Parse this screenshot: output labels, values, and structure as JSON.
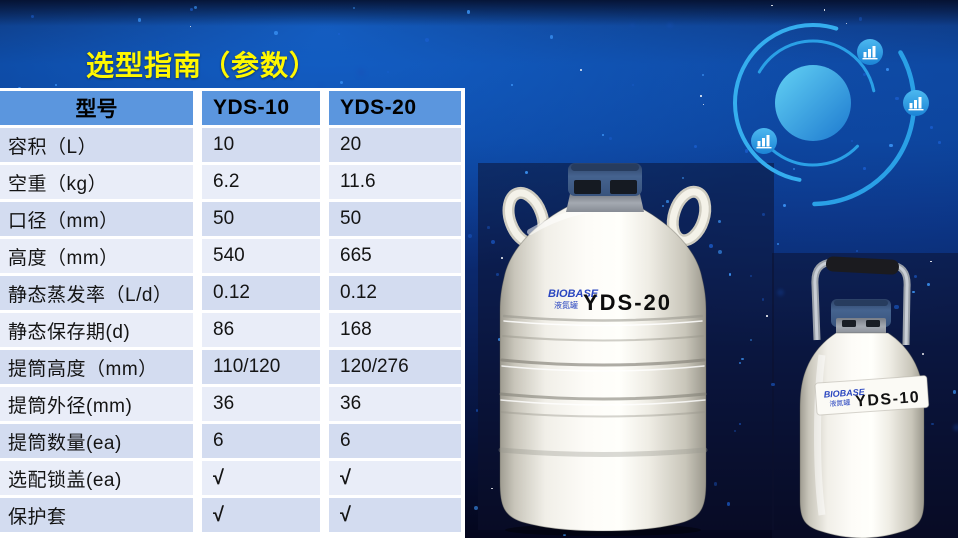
{
  "title": "选型指南（参数）",
  "colors": {
    "title_text": "#FFF800",
    "table_header_bg": "#5B96DE",
    "row_band_dark": "#D3DCF0",
    "row_band_light": "#E9EDF8",
    "orbit_blue": "#2AA0E6",
    "tank_cap_blue": "#3A5584",
    "brand_blue": "#2A46C0"
  },
  "table": {
    "header": {
      "col1": "型号",
      "col2": "YDS-10",
      "col3": "YDS-20"
    },
    "rows": [
      {
        "label": "容积（L）",
        "yds10": "10",
        "yds20": "20"
      },
      {
        "label": "空重（kg）",
        "yds10": "6.2",
        "yds20": "11.6"
      },
      {
        "label": "口径（mm）",
        "yds10": "50",
        "yds20": "50"
      },
      {
        "label": "高度（mm）",
        "yds10": "540",
        "yds20": "665"
      },
      {
        "label": "静态蒸发率（L/d）",
        "yds10": "0.12",
        "yds20": "0.12"
      },
      {
        "label": "静态保存期(d)",
        "yds10": "86",
        "yds20": "168"
      },
      {
        "label": "提筒高度（mm）",
        "yds10": "110/120",
        "yds20": "120/276"
      },
      {
        "label": "提筒外径(mm)",
        "yds10": "36",
        "yds20": "36"
      },
      {
        "label": "提筒数量(ea)",
        "yds10": "6",
        "yds20": "6"
      },
      {
        "label": "选配锁盖(ea)",
        "yds10": "√",
        "yds20": "√"
      },
      {
        "label": "保护套",
        "yds10": "√",
        "yds20": "√"
      }
    ]
  },
  "products": {
    "yds20": {
      "brand": "BIOBASE",
      "sub": "液氮罐",
      "model": "YDS-20"
    },
    "yds10": {
      "brand": "BIOBASE",
      "sub": "液氮罐",
      "model": "YDS-10"
    }
  },
  "decor": {
    "orbit_badge_icon": "bar-chart"
  }
}
